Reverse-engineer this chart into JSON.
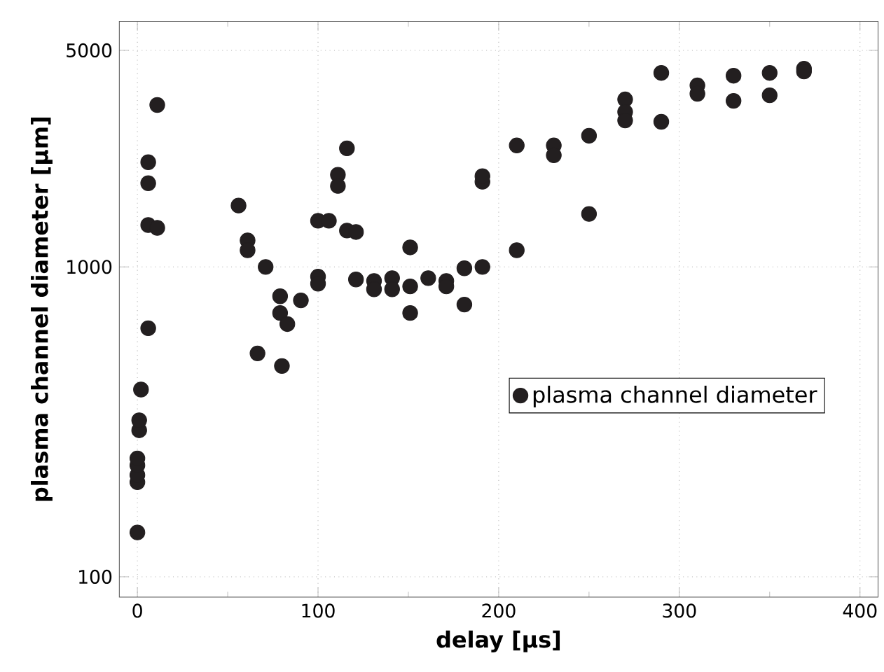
{
  "chart_data": {
    "type": "scatter",
    "xlabel": "delay [µs]",
    "ylabel": "plasma channel diameter [µm]",
    "xlim": [
      -10,
      410
    ],
    "xticks": [
      0,
      100,
      200,
      300,
      400
    ],
    "ylim": [
      86,
      6200
    ],
    "yticks": [
      100,
      1000,
      5000
    ],
    "log": "y",
    "grid": true,
    "legend": "right",
    "series": [
      {
        "name": "plasma channel diameter",
        "color": "#231f20",
        "x": [
          0,
          0,
          0,
          0,
          0,
          1,
          1,
          2,
          6,
          6,
          6,
          6,
          11,
          11,
          56,
          61,
          61,
          71,
          66.5,
          80,
          79,
          79,
          83,
          90.5,
          100,
          100,
          100,
          106,
          111,
          111,
          116,
          116,
          121,
          121,
          131,
          131,
          141,
          141,
          151,
          151,
          151,
          161,
          171,
          171,
          181,
          181,
          191,
          191,
          191,
          210,
          210,
          230.5,
          230.5,
          250,
          250,
          270,
          270,
          270,
          290,
          290,
          310,
          310,
          330,
          330,
          350,
          350,
          369,
          369
        ],
        "values": [
          139,
          202,
          213,
          229,
          241,
          297,
          320,
          402,
          634,
          1863,
          2177,
          1365,
          3331,
          1337,
          1578,
          1218,
          1132,
          1000,
          526,
          479,
          804,
          710,
          654,
          780,
          930,
          883,
          1409,
          1409,
          1983,
          1825,
          2414,
          1310,
          1296,
          911,
          901,
          847,
          920,
          847,
          1156,
          865,
          710,
          920,
          901,
          865,
          990,
          756,
          1000,
          1883,
          1963,
          2466,
          1132,
          2466,
          2292,
          2650,
          1483,
          3472,
          3163,
          2970,
          4227,
          2940,
          3853,
          3620,
          4140,
          3435,
          4227,
          3580,
          4363,
          4273
        ]
      }
    ]
  }
}
